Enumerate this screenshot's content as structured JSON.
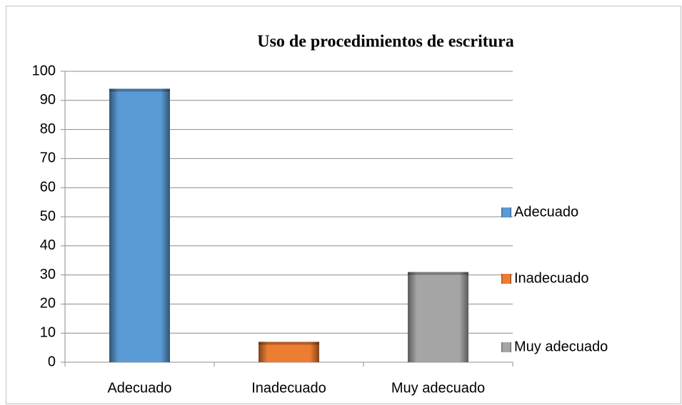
{
  "chart_data": {
    "type": "bar",
    "title": "Uso de procedimientos de escritura",
    "categories": [
      "Adecuado",
      "Inadecuado",
      "Muy adecuado"
    ],
    "values": [
      94,
      7,
      31
    ],
    "colors": [
      "#5b9bd5",
      "#ed7d31",
      "#a5a5a5"
    ],
    "ylim": [
      0,
      100
    ],
    "yticks": [
      0,
      10,
      20,
      30,
      40,
      50,
      60,
      70,
      80,
      90,
      100
    ],
    "grid": true,
    "legend": "right"
  }
}
